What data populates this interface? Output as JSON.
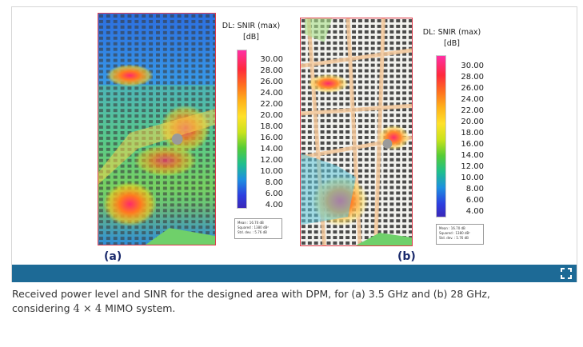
{
  "figure": {
    "panels": [
      {
        "label": "(a)",
        "colorbar_title_line1": "DL: SNIR (max)",
        "colorbar_title_line2": "[dB]",
        "ticks": [
          "30.00",
          "28.00",
          "26.00",
          "24.00",
          "22.00",
          "20.00",
          "18.00",
          "16.00",
          "14.00",
          "12.00",
          "10.00",
          "8.00",
          "6.00",
          "4.00"
        ],
        "stats": [
          "Mean  : 16.70 dB",
          "Squared : 1380 dB²",
          "Std. dev. : 5.76 dB"
        ]
      },
      {
        "label": "(b)",
        "colorbar_title_line1": "DL: SNIR (max)",
        "colorbar_title_line2": "[dB]",
        "ticks": [
          "30.00",
          "28.00",
          "26.00",
          "24.00",
          "22.00",
          "20.00",
          "18.00",
          "16.00",
          "14.00",
          "12.00",
          "10.00",
          "8.00",
          "6.00",
          "4.00"
        ],
        "stats": [
          "Mean  : 16.70 dB",
          "Squared : 1380 dB²",
          "Std. dev. : 5.76 dB"
        ]
      }
    ],
    "colors": {
      "toolbar": "#1d6a96",
      "panel_label": "#1a2a6c",
      "map_border": "#e03a4a"
    },
    "expand_icon": "expand-icon"
  },
  "caption": {
    "text_before": "Received power level and SINR for the designed area with DPM, for (a) 3.5 GHz and (b) 28 GHz,",
    "text_line2_prefix": "considering ",
    "math": "4 × 4",
    "text_line2_suffix": " MIMO system."
  }
}
